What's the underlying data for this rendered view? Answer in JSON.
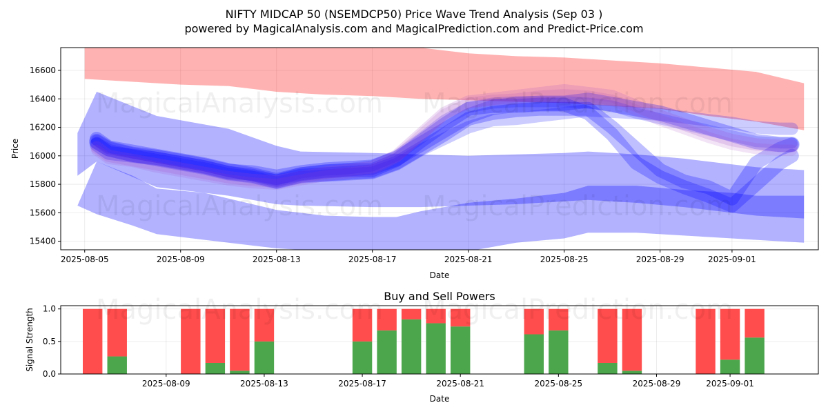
{
  "title_line1": "NIFTY MIDCAP 50 (NSEMDCP50) Price Wave Trend Analysis (Sep 03 )",
  "title_line2": "powered by MagicalAnalysis.com and MagicalPrediction.com and Predict-Price.com",
  "watermarks": [
    "MagicalAnalysis.com",
    "MagicalPrediction.com"
  ],
  "chart_data": [
    {
      "type": "area",
      "xlabel": "Date",
      "ylabel": "Price",
      "x_start": "2025-08-05",
      "x_range_days": [
        -1.0,
        30.6
      ],
      "ylim": [
        15340,
        16760
      ],
      "x_ticks": [
        {
          "label": "2025-08-05",
          "day": 0
        },
        {
          "label": "2025-08-09",
          "day": 4
        },
        {
          "label": "2025-08-13",
          "day": 8
        },
        {
          "label": "2025-08-17",
          "day": 12
        },
        {
          "label": "2025-08-21",
          "day": 16
        },
        {
          "label": "2025-08-25",
          "day": 20
        },
        {
          "label": "2025-08-29",
          "day": 24
        },
        {
          "label": "2025-09-01",
          "day": 27
        }
      ],
      "y_ticks": [
        15400,
        15600,
        15800,
        16000,
        16200,
        16400,
        16600
      ],
      "grid": true,
      "colors": {
        "red_band": "#ff0000",
        "blue_band": "#0000ff",
        "purple_band": "#a040c0"
      },
      "bands": [
        {
          "color": "red",
          "opacity": 0.3,
          "x": [
            0,
            2,
            4,
            6,
            8,
            10,
            12,
            14,
            16,
            18,
            20,
            22,
            24,
            26,
            28,
            30
          ],
          "upper": [
            16770,
            16770,
            16770,
            16770,
            16770,
            16770,
            16770,
            16760,
            16720,
            16700,
            16690,
            16670,
            16650,
            16620,
            16590,
            16510
          ],
          "lower": [
            16540,
            16520,
            16500,
            16490,
            16450,
            16430,
            16420,
            16400,
            16390,
            16380,
            16370,
            16350,
            16330,
            16280,
            16240,
            16180
          ]
        },
        {
          "color": "blue",
          "opacity": 0.3,
          "x": [
            -0.3,
            0.5,
            3,
            6,
            8,
            9,
            12,
            14,
            16,
            18,
            20,
            21,
            23,
            25,
            27,
            28,
            30
          ],
          "upper": [
            16160,
            16450,
            16280,
            16190,
            16070,
            16030,
            16020,
            16010,
            16000,
            16010,
            16020,
            16030,
            16010,
            15980,
            15940,
            15920,
            15900
          ],
          "lower": [
            15860,
            15960,
            15780,
            15720,
            15660,
            15650,
            15640,
            15640,
            15650,
            15660,
            15680,
            15690,
            15670,
            15640,
            15600,
            15580,
            15560
          ]
        },
        {
          "color": "blue",
          "opacity": 0.3,
          "x": [
            -0.3,
            0.5,
            2,
            3,
            5,
            6,
            8,
            10,
            12,
            13,
            14,
            16,
            18,
            20,
            21,
            23,
            25,
            27,
            28,
            30
          ],
          "upper": [
            15650,
            15960,
            15860,
            15770,
            15740,
            15700,
            15620,
            15580,
            15570,
            15570,
            15610,
            15670,
            15700,
            15740,
            15790,
            15790,
            15760,
            15740,
            15720,
            15720
          ],
          "lower": [
            15650,
            15590,
            15510,
            15450,
            15410,
            15390,
            15350,
            15330,
            15320,
            15320,
            15330,
            15330,
            15390,
            15420,
            15460,
            15460,
            15440,
            15420,
            15410,
            15390
          ]
        }
      ],
      "waves": [
        {
          "color": "blue",
          "opacity": 0.25,
          "width": 22,
          "x": [
            0.5,
            1,
            2,
            3,
            4,
            5,
            6,
            7,
            8,
            9,
            10,
            11,
            12,
            13,
            14,
            15,
            16,
            17,
            18,
            19,
            20,
            21,
            22,
            23,
            24,
            25,
            26,
            27,
            28,
            29,
            29.5
          ],
          "y": [
            16100,
            16050,
            16010,
            15990,
            15960,
            15930,
            15890,
            15880,
            15850,
            15880,
            15900,
            15910,
            15920,
            15980,
            16080,
            16180,
            16280,
            16340,
            16360,
            16370,
            16370,
            16390,
            16360,
            16330,
            16300,
            16250,
            16200,
            16150,
            16100,
            16080,
            16080
          ]
        },
        {
          "color": "blue",
          "opacity": 0.25,
          "width": 20,
          "x": [
            0.5,
            1,
            2,
            3,
            4,
            5,
            6,
            7,
            8,
            9,
            10,
            11,
            12,
            13,
            14,
            15,
            16,
            17,
            18,
            19,
            20,
            21,
            22,
            23,
            24,
            25,
            26,
            27,
            28,
            29,
            29.5
          ],
          "y": [
            16080,
            16020,
            16000,
            15980,
            15950,
            15920,
            15880,
            15860,
            15820,
            15860,
            15870,
            15880,
            15890,
            15950,
            16050,
            16150,
            16260,
            16300,
            16320,
            16330,
            16330,
            16330,
            16200,
            16050,
            15900,
            15820,
            15780,
            15700,
            15950,
            16050,
            16080
          ]
        },
        {
          "color": "blue",
          "opacity": 0.25,
          "width": 20,
          "x": [
            0.5,
            1,
            2,
            3,
            4,
            5,
            6,
            7,
            8,
            9,
            10,
            11,
            12,
            13,
            14,
            15,
            16,
            17,
            18,
            19,
            20,
            21,
            22,
            23,
            24,
            25,
            26,
            27,
            28,
            29,
            29.5
          ],
          "y": [
            16120,
            16060,
            16030,
            16000,
            15970,
            15940,
            15900,
            15870,
            15830,
            15870,
            15890,
            15900,
            15900,
            15970,
            16100,
            16220,
            16330,
            16350,
            16350,
            16360,
            16360,
            16300,
            16150,
            15950,
            15850,
            15780,
            15720,
            15650,
            15800,
            15950,
            16000
          ]
        },
        {
          "color": "blue",
          "opacity": 0.2,
          "width": 18,
          "x": [
            0.5,
            1,
            2,
            3,
            4,
            5,
            6,
            7,
            8,
            9,
            10,
            11,
            12,
            13,
            14,
            15,
            16,
            17,
            18,
            19,
            20,
            21,
            22,
            23,
            24,
            25,
            26,
            27,
            28,
            29,
            29.5
          ],
          "y": [
            16090,
            16040,
            16000,
            15970,
            15940,
            15910,
            15870,
            15850,
            15810,
            15850,
            15860,
            15870,
            15880,
            15940,
            16040,
            16120,
            16200,
            16250,
            16260,
            16280,
            16300,
            16320,
            16310,
            16300,
            16290,
            16270,
            16250,
            16230,
            16200,
            16190,
            16190
          ]
        },
        {
          "color": "blue",
          "opacity": 0.18,
          "width": 16,
          "x": [
            0.5,
            1,
            2,
            3,
            4,
            5,
            6,
            7,
            8,
            9,
            10,
            11,
            12,
            13,
            14,
            15,
            16,
            17,
            18,
            19,
            20,
            21,
            22,
            23,
            24,
            25,
            26,
            27,
            28,
            29,
            29.5
          ],
          "y": [
            16110,
            16060,
            16020,
            15990,
            15960,
            15930,
            15890,
            15860,
            15830,
            15880,
            15900,
            15910,
            15930,
            16000,
            16120,
            16250,
            16340,
            16370,
            16380,
            16380,
            16380,
            16370,
            16350,
            16300,
            16260,
            16220,
            16180,
            16140,
            16100,
            16090,
            16090
          ]
        },
        {
          "color": "purple",
          "opacity": 0.18,
          "width": 18,
          "x": [
            0.5,
            1,
            2,
            3,
            4,
            5,
            6,
            7,
            8,
            9,
            10,
            11,
            12,
            13,
            14,
            15,
            16,
            17,
            18,
            19,
            20,
            21,
            22,
            23,
            24,
            25,
            26,
            27,
            28,
            29,
            29.5
          ],
          "y": [
            16060,
            16000,
            15970,
            15940,
            15910,
            15880,
            15850,
            15830,
            15820,
            15850,
            15880,
            15900,
            15920,
            16000,
            16150,
            16300,
            16380,
            16400,
            16420,
            16440,
            16460,
            16440,
            16420,
            16350,
            16280,
            16220,
            16160,
            16110,
            16080,
            16070,
            16070
          ]
        },
        {
          "color": "purple",
          "opacity": 0.14,
          "width": 16,
          "x": [
            0.5,
            1,
            2,
            3,
            4,
            5,
            6,
            7,
            8,
            9,
            10,
            11,
            12,
            13,
            14,
            15,
            16,
            17,
            18,
            19,
            20,
            21,
            22,
            23,
            24,
            25,
            26,
            27,
            28,
            29,
            29.5
          ],
          "y": [
            16040,
            15980,
            15960,
            15920,
            15890,
            15860,
            15830,
            15810,
            15800,
            15830,
            15860,
            15880,
            15900,
            15990,
            16140,
            16290,
            16370,
            16390,
            16400,
            16420,
            16430,
            16420,
            16390,
            16320,
            16250,
            16190,
            16130,
            16080,
            16050,
            16040,
            16040
          ]
        }
      ]
    },
    {
      "type": "bar",
      "title": "Buy and Sell Powers",
      "xlabel": "Date",
      "ylabel": "Signal Strength",
      "x_start": "2025-08-05",
      "x_range_days": [
        -0.3,
        30.6
      ],
      "ylim": [
        0,
        1.05
      ],
      "y_ticks": [
        0.0,
        0.5,
        1.0
      ],
      "x_ticks": [
        {
          "label": "2025-08-09",
          "day": 4
        },
        {
          "label": "2025-08-13",
          "day": 8
        },
        {
          "label": "2025-08-17",
          "day": 12
        },
        {
          "label": "2025-08-21",
          "day": 16
        },
        {
          "label": "2025-08-25",
          "day": 20
        },
        {
          "label": "2025-08-29",
          "day": 24
        },
        {
          "label": "2025-09-01",
          "day": 27
        }
      ],
      "grid": true,
      "colors": {
        "buy": "#4ca64c",
        "sell": "#ff4c4c"
      },
      "series": [
        {
          "name": "Buy",
          "values": [
            0.0,
            0.27,
            0.0,
            0.17,
            0.05,
            0.5,
            0.5,
            0.67,
            0.84,
            0.78,
            0.73,
            0.61,
            0.67,
            0.17,
            0.05,
            0.0,
            0.22,
            0.56
          ]
        },
        {
          "name": "Sell",
          "values": [
            1.0,
            0.73,
            1.0,
            0.83,
            0.95,
            0.5,
            0.5,
            0.33,
            0.16,
            0.22,
            0.27,
            0.39,
            0.33,
            0.83,
            0.95,
            1.0,
            0.78,
            0.44
          ]
        }
      ],
      "days": [
        1,
        2,
        5,
        6,
        7,
        8,
        12,
        13,
        14,
        15,
        16,
        19,
        20,
        22,
        23,
        26,
        27,
        28
      ]
    }
  ]
}
